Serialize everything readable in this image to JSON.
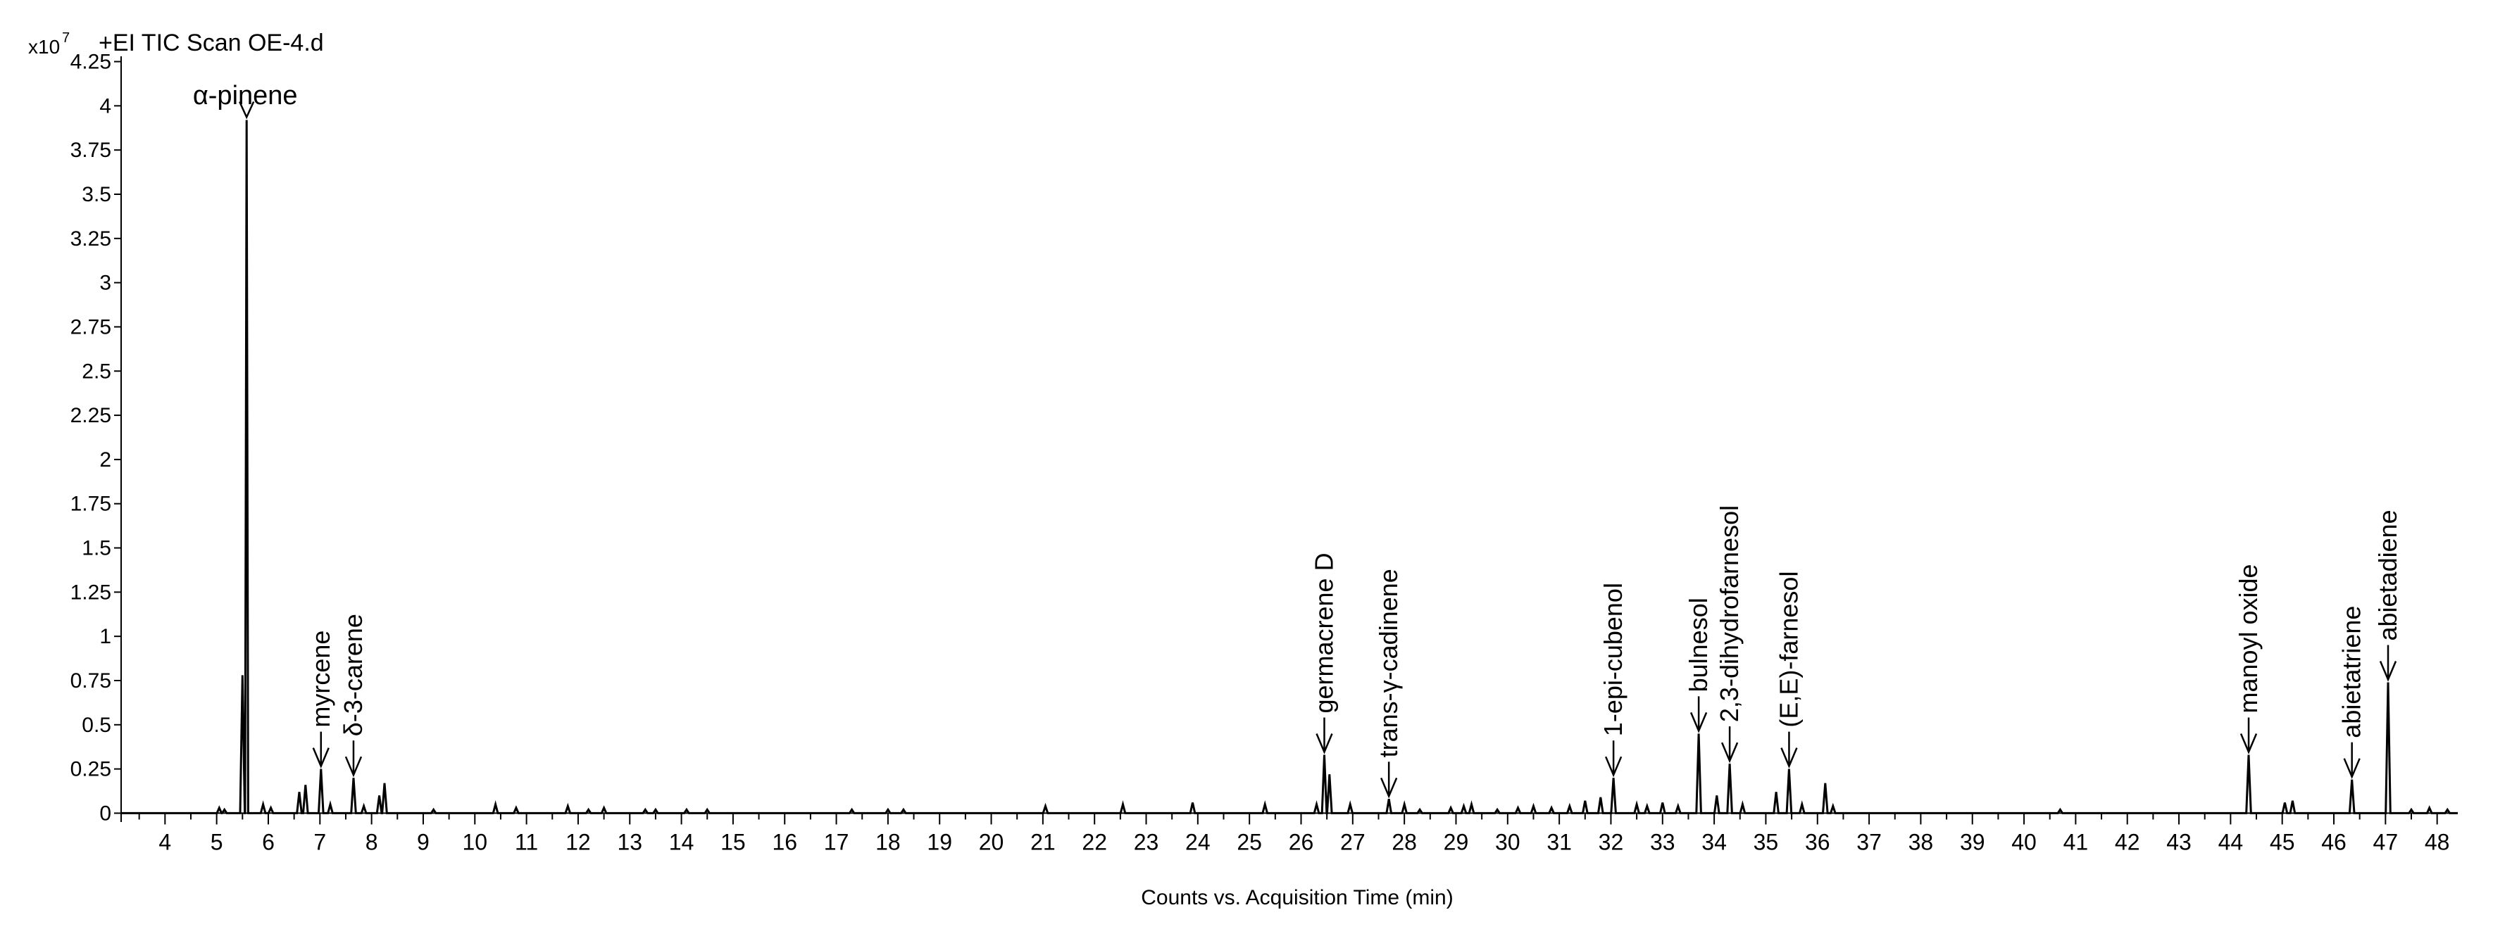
{
  "header": {
    "scale_label": "x10",
    "scale_exponent": "7",
    "title": "+EI TIC Scan OE-4.d"
  },
  "chart_data": {
    "type": "line",
    "title": "+EI TIC Scan OE-4.d",
    "xlabel": "Counts vs. Acquisition Time (min)",
    "ylabel": "",
    "y_multiplier": "x10^7",
    "xlim": [
      3.15,
      48.4
    ],
    "ylim": [
      -0.05,
      4.28
    ],
    "x_ticks": [
      4,
      5,
      6,
      7,
      8,
      9,
      10,
      11,
      12,
      13,
      14,
      15,
      16,
      17,
      18,
      19,
      20,
      21,
      22,
      23,
      24,
      25,
      26,
      27,
      28,
      29,
      30,
      31,
      32,
      33,
      34,
      35,
      36,
      37,
      38,
      39,
      40,
      41,
      42,
      43,
      44,
      45,
      46,
      47,
      48
    ],
    "y_ticks": [
      0,
      0.25,
      0.5,
      0.75,
      1,
      1.25,
      1.5,
      1.75,
      2,
      2.25,
      2.5,
      2.75,
      3,
      3.25,
      3.5,
      3.75,
      4,
      4.25
    ],
    "grid": false,
    "legend": "none",
    "color": "#000000",
    "series": [
      {
        "peaks": [
          [
            5.05,
            0.03
          ],
          [
            5.15,
            0.02
          ],
          [
            5.5,
            0.78
          ],
          [
            5.58,
            3.92
          ],
          [
            5.9,
            0.05
          ],
          [
            6.05,
            0.03
          ],
          [
            6.6,
            0.12
          ],
          [
            6.72,
            0.16
          ],
          [
            7.02,
            0.25
          ],
          [
            7.2,
            0.05
          ],
          [
            7.65,
            0.2
          ],
          [
            7.85,
            0.04
          ],
          [
            8.15,
            0.1
          ],
          [
            8.25,
            0.17
          ],
          [
            9.2,
            0.02
          ],
          [
            10.4,
            0.05
          ],
          [
            10.8,
            0.03
          ],
          [
            11.8,
            0.04
          ],
          [
            12.2,
            0.02
          ],
          [
            12.5,
            0.03
          ],
          [
            13.3,
            0.02
          ],
          [
            13.5,
            0.02
          ],
          [
            14.1,
            0.02
          ],
          [
            14.5,
            0.02
          ],
          [
            17.3,
            0.02
          ],
          [
            18.0,
            0.02
          ],
          [
            18.3,
            0.02
          ],
          [
            21.05,
            0.04
          ],
          [
            22.55,
            0.05
          ],
          [
            23.9,
            0.06
          ],
          [
            25.3,
            0.05
          ],
          [
            26.3,
            0.05
          ],
          [
            26.45,
            0.33
          ],
          [
            26.55,
            0.22
          ],
          [
            26.95,
            0.05
          ],
          [
            27.7,
            0.08
          ],
          [
            28.0,
            0.05
          ],
          [
            28.3,
            0.02
          ],
          [
            28.9,
            0.03
          ],
          [
            29.15,
            0.04
          ],
          [
            29.3,
            0.05
          ],
          [
            29.8,
            0.02
          ],
          [
            30.2,
            0.03
          ],
          [
            30.5,
            0.04
          ],
          [
            30.85,
            0.03
          ],
          [
            31.2,
            0.04
          ],
          [
            31.5,
            0.07
          ],
          [
            31.8,
            0.09
          ],
          [
            32.05,
            0.2
          ],
          [
            32.5,
            0.05
          ],
          [
            32.7,
            0.04
          ],
          [
            33.0,
            0.06
          ],
          [
            33.3,
            0.04
          ],
          [
            33.7,
            0.45
          ],
          [
            34.05,
            0.1
          ],
          [
            34.3,
            0.28
          ],
          [
            34.55,
            0.05
          ],
          [
            35.2,
            0.12
          ],
          [
            35.45,
            0.25
          ],
          [
            35.7,
            0.05
          ],
          [
            36.15,
            0.17
          ],
          [
            36.3,
            0.04
          ],
          [
            40.7,
            0.02
          ],
          [
            44.35,
            0.33
          ],
          [
            45.05,
            0.06
          ],
          [
            45.2,
            0.07
          ],
          [
            46.35,
            0.19
          ],
          [
            47.05,
            0.74
          ],
          [
            47.5,
            0.02
          ],
          [
            47.85,
            0.03
          ],
          [
            48.2,
            0.02
          ]
        ]
      }
    ],
    "annotations": [
      {
        "label": "α-pinene",
        "x": 5.58,
        "y": 3.92,
        "orientation": "horizontal"
      },
      {
        "label": "myrcene",
        "x": 7.02,
        "y": 0.25,
        "orientation": "vertical"
      },
      {
        "label": "δ-3-carene",
        "x": 7.65,
        "y": 0.2,
        "orientation": "vertical"
      },
      {
        "label": "germacrene D",
        "x": 26.45,
        "y": 0.33,
        "orientation": "vertical"
      },
      {
        "label": "trans-γ-cadinene",
        "x": 27.7,
        "y": 0.08,
        "orientation": "vertical"
      },
      {
        "label": "1-epi-cubenol",
        "x": 32.05,
        "y": 0.2,
        "orientation": "vertical"
      },
      {
        "label": "bulnesol",
        "x": 33.7,
        "y": 0.45,
        "orientation": "vertical"
      },
      {
        "label": "2,3-dihydrofarnesol",
        "x": 34.3,
        "y": 0.28,
        "orientation": "vertical"
      },
      {
        "label": "(E,E)-farnesol",
        "x": 35.45,
        "y": 0.25,
        "orientation": "vertical"
      },
      {
        "label": "manoyl oxide",
        "x": 44.35,
        "y": 0.33,
        "orientation": "vertical"
      },
      {
        "label": "abietatriene",
        "x": 46.35,
        "y": 0.19,
        "orientation": "vertical"
      },
      {
        "label": "abietadiene",
        "x": 47.05,
        "y": 0.74,
        "orientation": "vertical"
      }
    ]
  }
}
